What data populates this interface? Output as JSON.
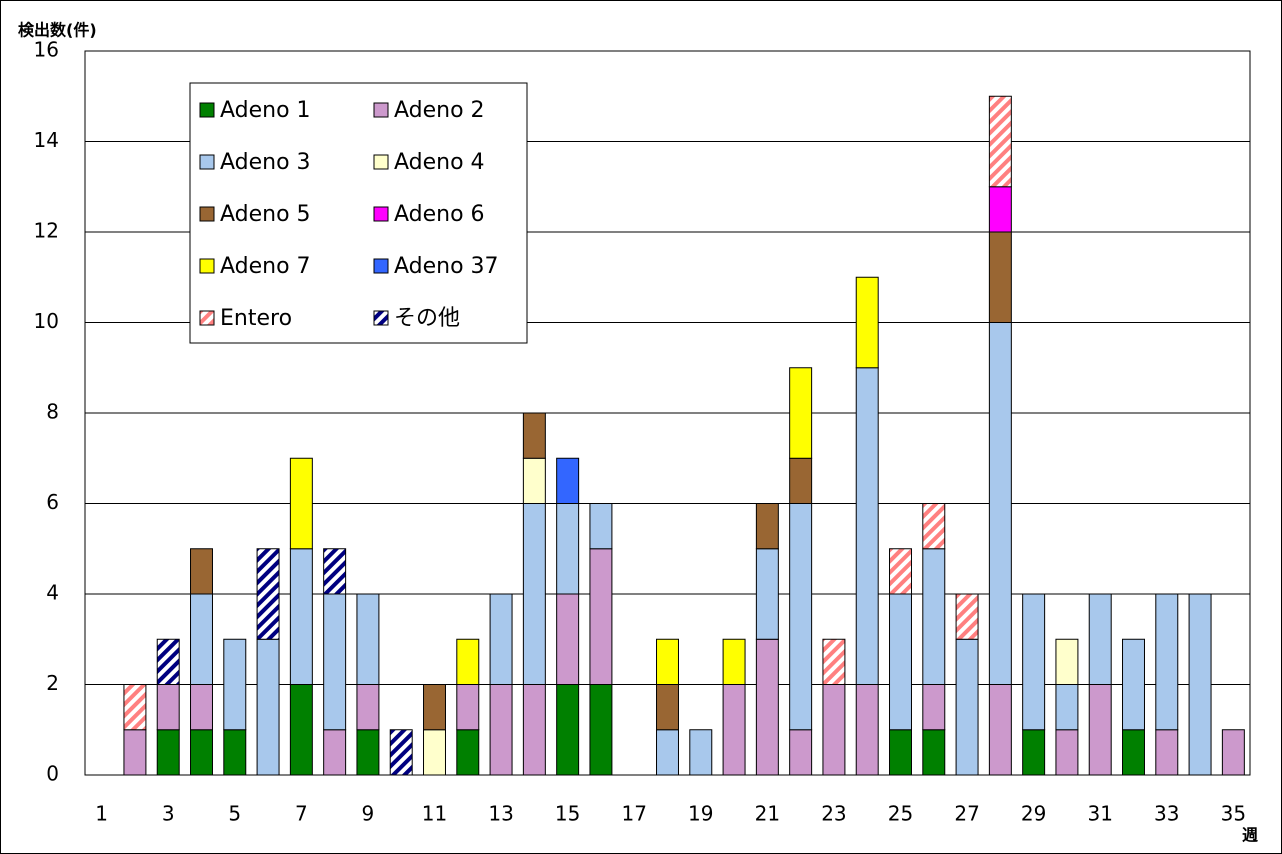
{
  "chart_data": {
    "type": "stacked_bar",
    "y_label": "検出数(件)",
    "x_label": "週",
    "categories": [
      1,
      null,
      3,
      null,
      5,
      null,
      7,
      null,
      9,
      null,
      11,
      null,
      13,
      null,
      15,
      null,
      17,
      null,
      19,
      null,
      21,
      null,
      23,
      null,
      25,
      null,
      27,
      null,
      29,
      null,
      31,
      null,
      33,
      null,
      35
    ],
    "series": [
      {
        "name": "Adeno 1",
        "color": "#008000",
        "values": [
          0,
          0,
          1,
          1,
          1,
          0,
          2,
          0,
          1,
          0,
          0,
          1,
          0,
          0,
          2,
          2,
          0,
          0,
          0,
          0,
          0,
          0,
          0,
          0,
          1,
          1,
          0,
          0,
          1,
          0,
          0,
          1,
          0,
          0,
          0
        ]
      },
      {
        "name": "Adeno 2",
        "color": "#cc99cc",
        "values": [
          0,
          1,
          1,
          1,
          0,
          0,
          0,
          1,
          1,
          0,
          0,
          1,
          2,
          2,
          2,
          3,
          0,
          0,
          0,
          2,
          3,
          1,
          2,
          2,
          0,
          1,
          0,
          2,
          0,
          1,
          2,
          0,
          1,
          0,
          1
        ]
      },
      {
        "name": "Adeno 3",
        "color": "#a8c8ec",
        "values": [
          0,
          0,
          0,
          2,
          2,
          3,
          3,
          3,
          2,
          0,
          0,
          0,
          2,
          4,
          2,
          1,
          0,
          1,
          1,
          0,
          2,
          5,
          0,
          7,
          3,
          3,
          3,
          8,
          3,
          1,
          2,
          2,
          3,
          4,
          0
        ]
      },
      {
        "name": "Adeno 4",
        "color": "#ffffcc",
        "values": [
          0,
          0,
          0,
          0,
          0,
          0,
          0,
          0,
          0,
          0,
          1,
          0,
          0,
          1,
          0,
          0,
          0,
          0,
          0,
          0,
          0,
          0,
          0,
          0,
          0,
          0,
          0,
          0,
          0,
          1,
          0,
          0,
          0,
          0,
          0
        ]
      },
      {
        "name": "Adeno 5",
        "color": "#996633",
        "values": [
          0,
          0,
          0,
          1,
          0,
          0,
          0,
          0,
          0,
          0,
          1,
          0,
          0,
          1,
          0,
          0,
          0,
          1,
          0,
          0,
          1,
          1,
          0,
          0,
          0,
          0,
          0,
          2,
          0,
          0,
          0,
          0,
          0,
          0,
          0
        ]
      },
      {
        "name": "Adeno 6",
        "color": "#ff00ff",
        "values": [
          0,
          0,
          0,
          0,
          0,
          0,
          0,
          0,
          0,
          0,
          0,
          0,
          0,
          0,
          0,
          0,
          0,
          0,
          0,
          0,
          0,
          0,
          0,
          0,
          0,
          0,
          0,
          1,
          0,
          0,
          0,
          0,
          0,
          0,
          0
        ]
      },
      {
        "name": "Adeno 7",
        "color": "#ffff00",
        "values": [
          0,
          0,
          0,
          0,
          0,
          0,
          2,
          0,
          0,
          0,
          0,
          1,
          0,
          0,
          0,
          0,
          0,
          1,
          0,
          1,
          0,
          2,
          0,
          2,
          0,
          0,
          0,
          0,
          0,
          0,
          0,
          0,
          0,
          0,
          0
        ]
      },
      {
        "name": "Adeno 37",
        "color": "#3366ff",
        "values": [
          0,
          0,
          0,
          0,
          0,
          0,
          0,
          0,
          0,
          0,
          0,
          0,
          0,
          0,
          1,
          0,
          0,
          0,
          0,
          0,
          0,
          0,
          0,
          0,
          0,
          0,
          0,
          0,
          0,
          0,
          0,
          0,
          0,
          0,
          0
        ]
      },
      {
        "name": "Entero",
        "color": "#ff8080",
        "hatch": true,
        "values": [
          0,
          1,
          0,
          0,
          0,
          0,
          0,
          0,
          0,
          0,
          0,
          0,
          0,
          0,
          0,
          0,
          0,
          0,
          0,
          0,
          0,
          0,
          1,
          0,
          1,
          1,
          1,
          2,
          0,
          0,
          0,
          0,
          0,
          0,
          0
        ]
      },
      {
        "name": "その他",
        "color": "#000080",
        "hatch": true,
        "values": [
          0,
          0,
          1,
          0,
          0,
          2,
          0,
          1,
          0,
          1,
          0,
          0,
          0,
          0,
          0,
          0,
          0,
          0,
          0,
          0,
          0,
          0,
          0,
          0,
          0,
          0,
          0,
          0,
          0,
          0,
          0,
          0,
          0,
          0,
          0
        ]
      }
    ],
    "ylim": [
      0,
      16
    ],
    "yticks": [
      0,
      2,
      4,
      6,
      8,
      10,
      12,
      14,
      16
    ],
    "grid": true
  }
}
